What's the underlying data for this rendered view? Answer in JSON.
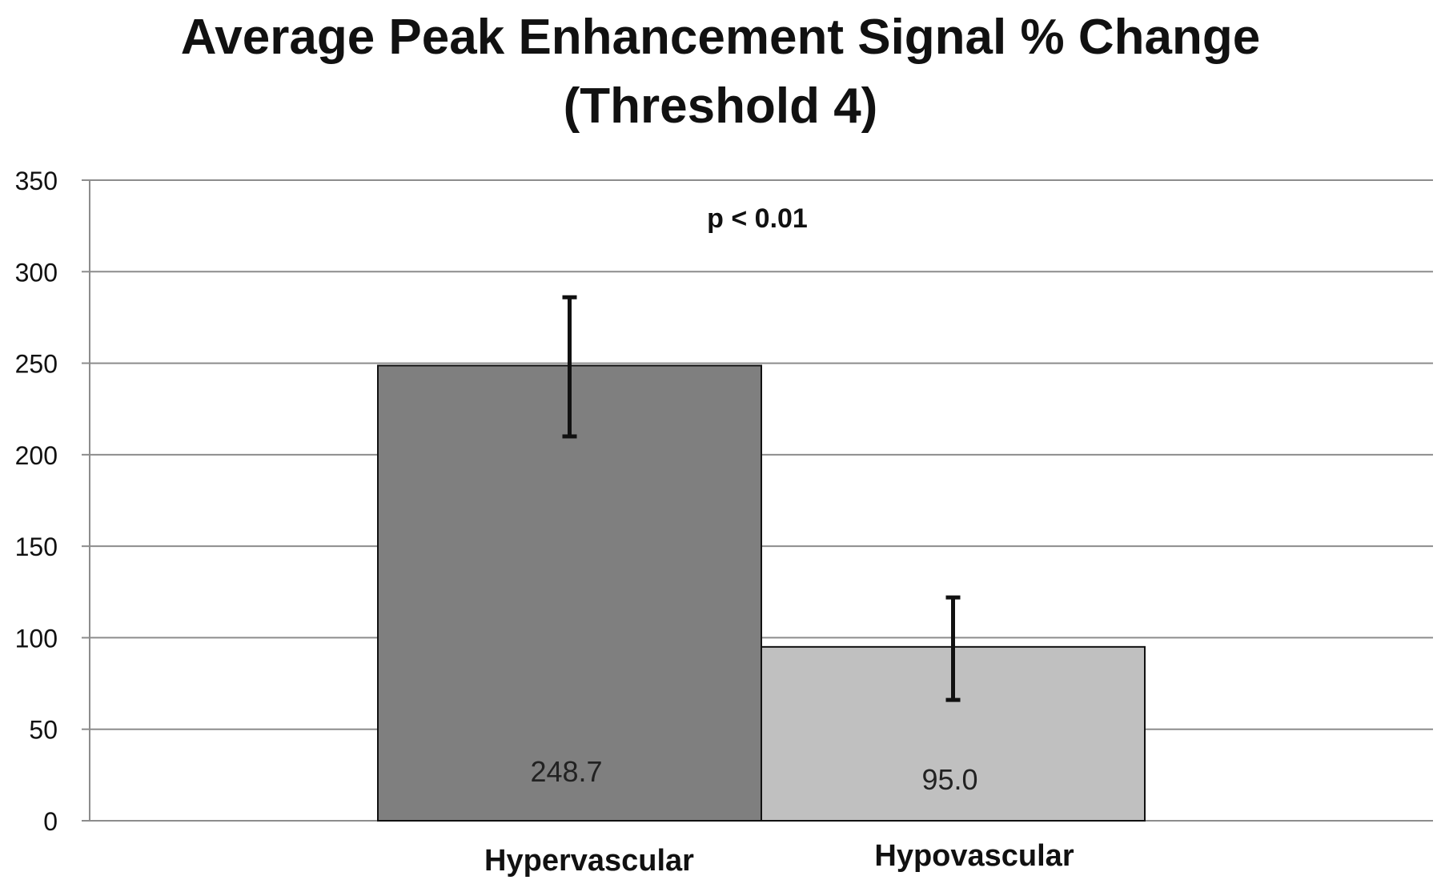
{
  "chart_data": {
    "type": "bar",
    "title_lines": [
      "Average Peak Enhancement Signal % Change",
      "(Threshold 4)"
    ],
    "categories": [
      "Hypervascular",
      "Hypovascular"
    ],
    "values": [
      248.7,
      95.0
    ],
    "value_labels": [
      "248.7",
      "95.0"
    ],
    "error_bars": [
      {
        "low": 210,
        "high": 286
      },
      {
        "low": 66,
        "high": 122
      }
    ],
    "bar_colors": [
      "#7f7f7f",
      "#c0c0c0"
    ],
    "ylim": [
      0,
      350
    ],
    "yticks": [
      0,
      50,
      100,
      150,
      200,
      250,
      300,
      350
    ],
    "ytick_labels": [
      "0",
      "50",
      "100",
      "150",
      "200",
      "250",
      "300",
      "350"
    ],
    "grid": true,
    "legend": "none",
    "annotation": "p < 0.01",
    "xlabel": "",
    "ylabel": ""
  }
}
